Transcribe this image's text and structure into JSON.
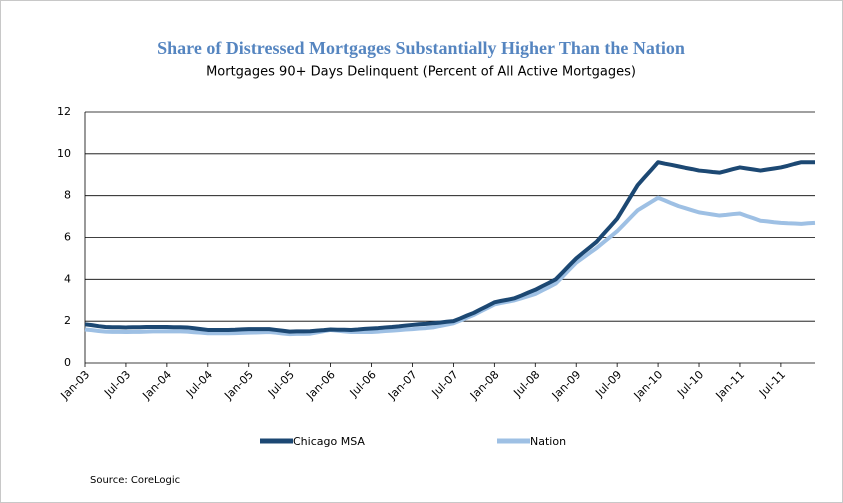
{
  "chart_data": {
    "type": "line",
    "title": "Share of Distressed Mortgages Substantially Higher Than the Nation",
    "subtitle": "Mortgages 90+ Days Delinquent (Percent of All Active Mortgages)",
    "source": "Source: CoreLogic",
    "categories": [
      "Jan-03",
      null,
      null,
      null,
      null,
      null,
      "Jul-03",
      null,
      null,
      null,
      null,
      null,
      "Jan-04",
      null,
      null,
      null,
      null,
      null,
      "Jul-04",
      null,
      null,
      null,
      null,
      null,
      "Jan-05",
      null,
      null,
      null,
      null,
      null,
      "Jul-05",
      null,
      null,
      null,
      null,
      null,
      "Jan-06",
      null,
      null,
      null,
      null,
      null,
      "Jul-06",
      null,
      null,
      null,
      null,
      null,
      "Jan-07",
      null,
      null,
      null,
      null,
      null,
      "Jul-07",
      null,
      null,
      null,
      null,
      null,
      "Jan-08",
      null,
      null,
      null,
      null,
      null,
      "Jul-08",
      null,
      null,
      null,
      null,
      null,
      "Jan-09",
      null,
      null,
      null,
      null,
      null,
      "Jul-09",
      null,
      null,
      null,
      null,
      null,
      "Jan-10",
      null,
      null,
      null,
      null,
      null,
      "Jul-10",
      null,
      null,
      null,
      null,
      null,
      "Jan-11",
      null,
      null,
      null,
      null,
      null,
      "Jul-11",
      null,
      null,
      null,
      null,
      null
    ],
    "series": [
      {
        "name": "Chicago MSA",
        "color": "#1c4873",
        "values": [
          1.85,
          1.81,
          1.76,
          1.72,
          1.71,
          1.71,
          1.7,
          1.71,
          1.71,
          1.72,
          1.72,
          1.72,
          1.72,
          1.71,
          1.71,
          1.7,
          1.66,
          1.62,
          1.58,
          1.58,
          1.58,
          1.58,
          1.59,
          1.61,
          1.62,
          1.62,
          1.62,
          1.62,
          1.58,
          1.54,
          1.5,
          1.51,
          1.51,
          1.52,
          1.55,
          1.57,
          1.6,
          1.59,
          1.59,
          1.58,
          1.6,
          1.63,
          1.65,
          1.67,
          1.7,
          1.72,
          1.75,
          1.79,
          1.82,
          1.85,
          1.87,
          1.9,
          1.93,
          1.97,
          2.0,
          2.13,
          2.27,
          2.4,
          2.57,
          2.73,
          2.9,
          2.97,
          3.03,
          3.1,
          3.23,
          3.37,
          3.5,
          3.67,
          3.83,
          4.0,
          4.33,
          4.67,
          5.0,
          5.27,
          5.53,
          5.8,
          6.17,
          6.53,
          6.9,
          7.43,
          7.97,
          8.5,
          8.87,
          9.23,
          9.6,
          9.53,
          9.47,
          9.4,
          9.33,
          9.27,
          9.2,
          9.17,
          9.13,
          9.1,
          9.18,
          9.27,
          9.35,
          9.3,
          9.25,
          9.2,
          9.25,
          9.3,
          9.35,
          9.43,
          9.52,
          9.6,
          9.6,
          9.6
        ]
      },
      {
        "name": "Nation",
        "color": "#9ec0e4",
        "values": [
          1.6,
          1.57,
          1.53,
          1.5,
          1.49,
          1.49,
          1.48,
          1.49,
          1.49,
          1.5,
          1.51,
          1.51,
          1.52,
          1.51,
          1.51,
          1.5,
          1.47,
          1.45,
          1.42,
          1.42,
          1.42,
          1.42,
          1.43,
          1.44,
          1.45,
          1.46,
          1.47,
          1.48,
          1.45,
          1.41,
          1.38,
          1.39,
          1.39,
          1.4,
          1.46,
          1.52,
          1.58,
          1.55,
          1.51,
          1.48,
          1.48,
          1.48,
          1.48,
          1.5,
          1.53,
          1.55,
          1.57,
          1.6,
          1.62,
          1.65,
          1.67,
          1.7,
          1.77,
          1.83,
          1.9,
          2.03,
          2.17,
          2.3,
          2.47,
          2.63,
          2.8,
          2.87,
          2.93,
          3.0,
          3.1,
          3.2,
          3.3,
          3.47,
          3.63,
          3.8,
          4.13,
          4.47,
          4.8,
          5.03,
          5.27,
          5.5,
          5.77,
          6.03,
          6.3,
          6.63,
          6.97,
          7.3,
          7.5,
          7.7,
          7.9,
          7.77,
          7.63,
          7.5,
          7.4,
          7.3,
          7.2,
          7.15,
          7.1,
          7.05,
          7.08,
          7.12,
          7.15,
          7.03,
          6.92,
          6.8,
          6.77,
          6.73,
          6.7,
          6.68,
          6.67,
          6.65,
          6.68,
          6.7
        ]
      }
    ],
    "ylim": [
      0,
      12
    ],
    "yticks": [
      0,
      2,
      4,
      6,
      8,
      10,
      12
    ],
    "grid": true,
    "legend": "bottom"
  }
}
